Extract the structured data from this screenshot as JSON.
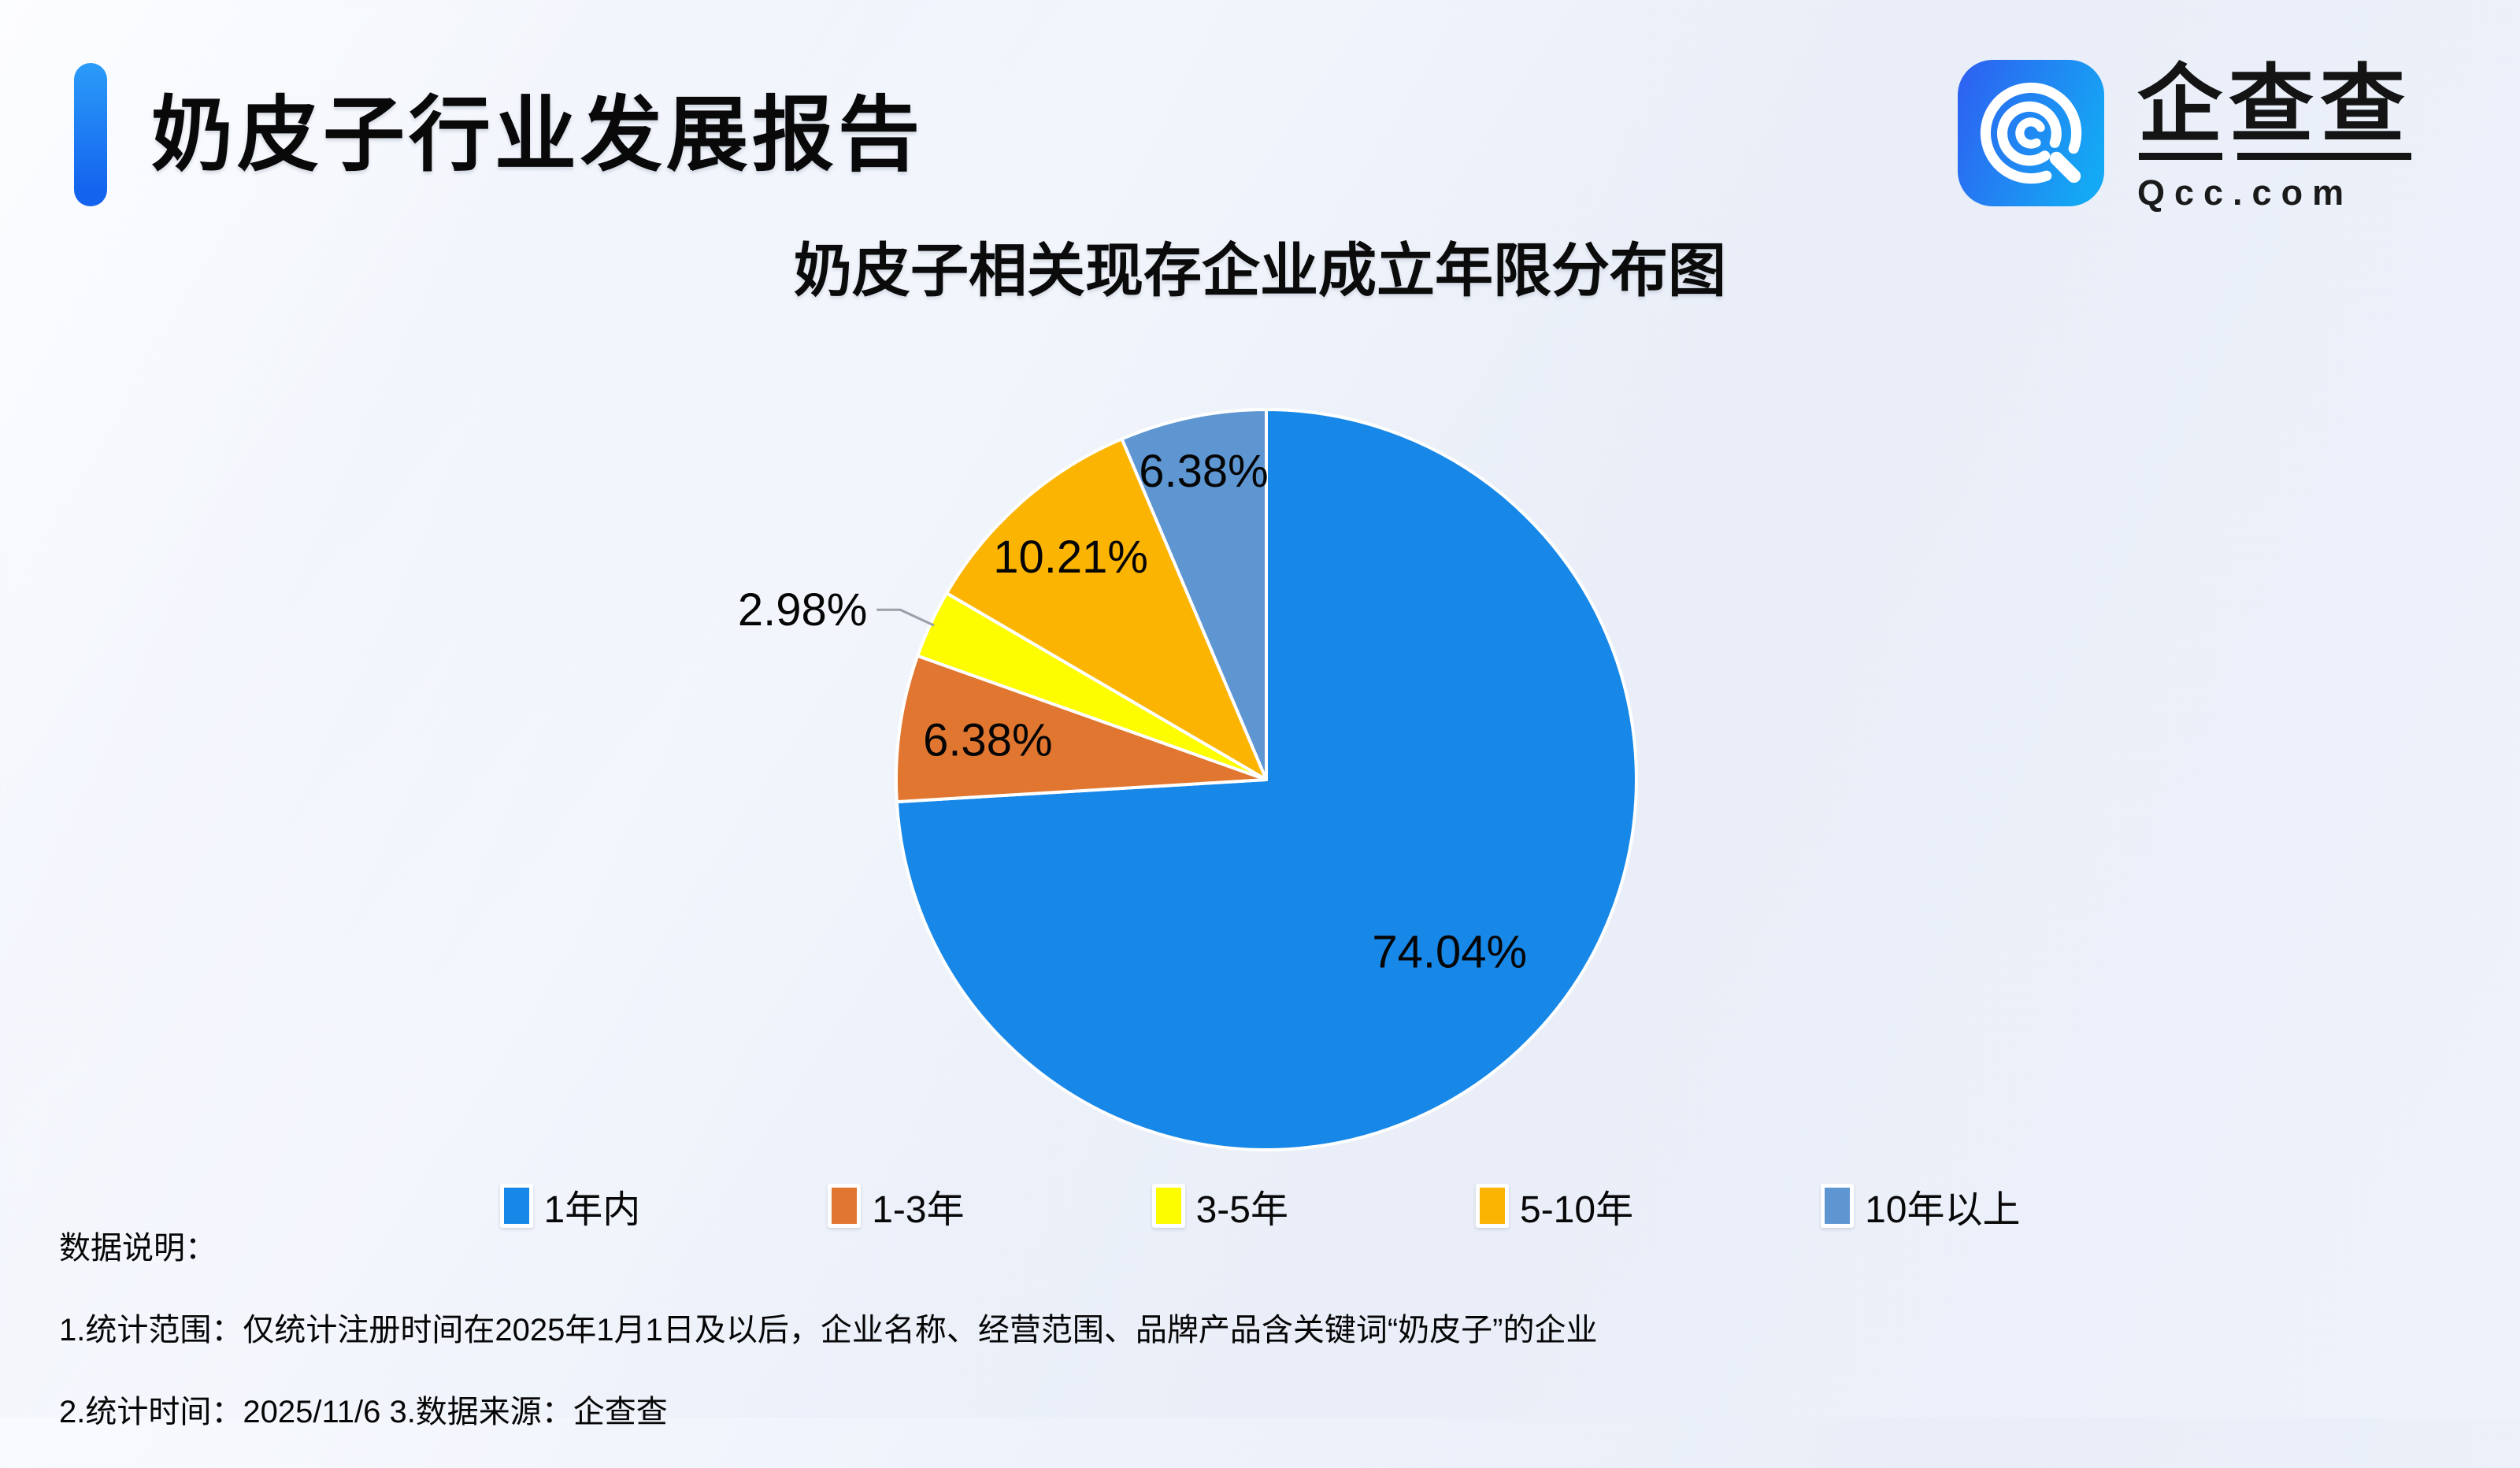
{
  "header": {
    "title": "奶皮子行业发展报告",
    "logo": {
      "name": "企查查",
      "domain": "Qcc.com",
      "icon": "qcc-magnifier-icon",
      "icon_gradient": [
        "#2d63f1",
        "#14a9f4"
      ]
    }
  },
  "chart": {
    "title": "奶皮子相关现存企业成立年限分布图"
  },
  "chart_data": {
    "type": "pie",
    "title": "奶皮子相关现存企业成立年限分布图",
    "categories": [
      "1年内",
      "1-3年",
      "3-5年",
      "5-10年",
      "10年以上"
    ],
    "values": [
      74.04,
      6.38,
      2.98,
      10.21,
      6.38
    ],
    "labels": [
      "74.04%",
      "6.38%",
      "2.98%",
      "10.21%",
      "6.38%"
    ],
    "colors": [
      "#1787E8",
      "#E0762F",
      "#FDFD00",
      "#FBB402",
      "#5E96D2"
    ],
    "unit": "%",
    "start_angle": "12-o'clock",
    "direction": "clockwise",
    "slice_border_color": "#ffffff",
    "label_color": "#050505",
    "leader_line_color": "#9aa0a8",
    "legend_position": "bottom"
  },
  "notes": {
    "heading": "数据说明：",
    "line1": "1.统计范围：仅统计注册时间在2025年1月1日及以后，企业名称、经营范围、品牌产品含关键词“奶皮子”的企业",
    "line2": "2.统计时间：2025/11/6  3.数据来源：企查查"
  }
}
